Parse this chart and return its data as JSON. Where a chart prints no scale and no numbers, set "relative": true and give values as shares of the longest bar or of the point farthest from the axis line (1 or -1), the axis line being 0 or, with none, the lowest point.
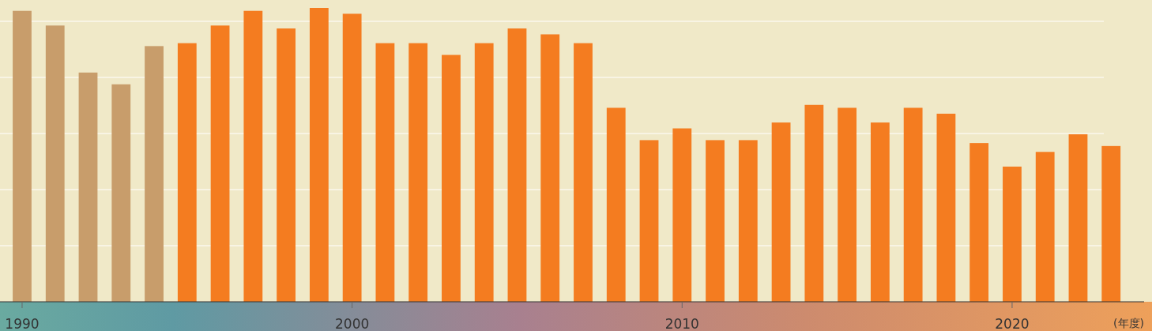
{
  "chart_data": {
    "type": "bar",
    "relative": true,
    "x": [
      1990,
      1991,
      1992,
      1993,
      1994,
      1995,
      1996,
      1997,
      1998,
      1999,
      2000,
      2001,
      2002,
      2003,
      2004,
      2005,
      2006,
      2007,
      2008,
      2009,
      2010,
      2011,
      2012,
      2013,
      2014,
      2015,
      2016,
      2017,
      2018,
      2019,
      2020,
      2021,
      2022,
      2023
    ],
    "values": [
      0.99,
      0.94,
      0.78,
      0.74,
      0.87,
      0.88,
      0.94,
      0.99,
      0.93,
      1.0,
      0.98,
      0.88,
      0.88,
      0.84,
      0.88,
      0.93,
      0.91,
      0.88,
      0.66,
      0.55,
      0.59,
      0.55,
      0.55,
      0.61,
      0.67,
      0.66,
      0.61,
      0.66,
      0.64,
      0.54,
      0.46,
      0.51,
      0.57,
      0.53
    ],
    "colors": [
      "#c89d6b",
      "#c89d6b",
      "#c89d6b",
      "#c89d6b",
      "#c89d6b",
      "#f47c20",
      "#f47c20",
      "#f47c20",
      "#f47c20",
      "#f47c20",
      "#f47c20",
      "#f47c20",
      "#f47c20",
      "#f47c20",
      "#f47c20",
      "#f47c20",
      "#f47c20",
      "#f47c20",
      "#f47c20",
      "#f47c20",
      "#f47c20",
      "#f47c20",
      "#f47c20",
      "#f47c20",
      "#f47c20",
      "#f47c20",
      "#f47c20",
      "#f47c20",
      "#f47c20",
      "#f47c20",
      "#f47c20",
      "#f47c20",
      "#f47c20",
      "#f47c20"
    ],
    "xlim": [
      1989.33,
      2024
    ],
    "xticks": [
      1990,
      2000,
      2010,
      2020
    ],
    "xlabel": "(年度)",
    "grid": "y"
  }
}
